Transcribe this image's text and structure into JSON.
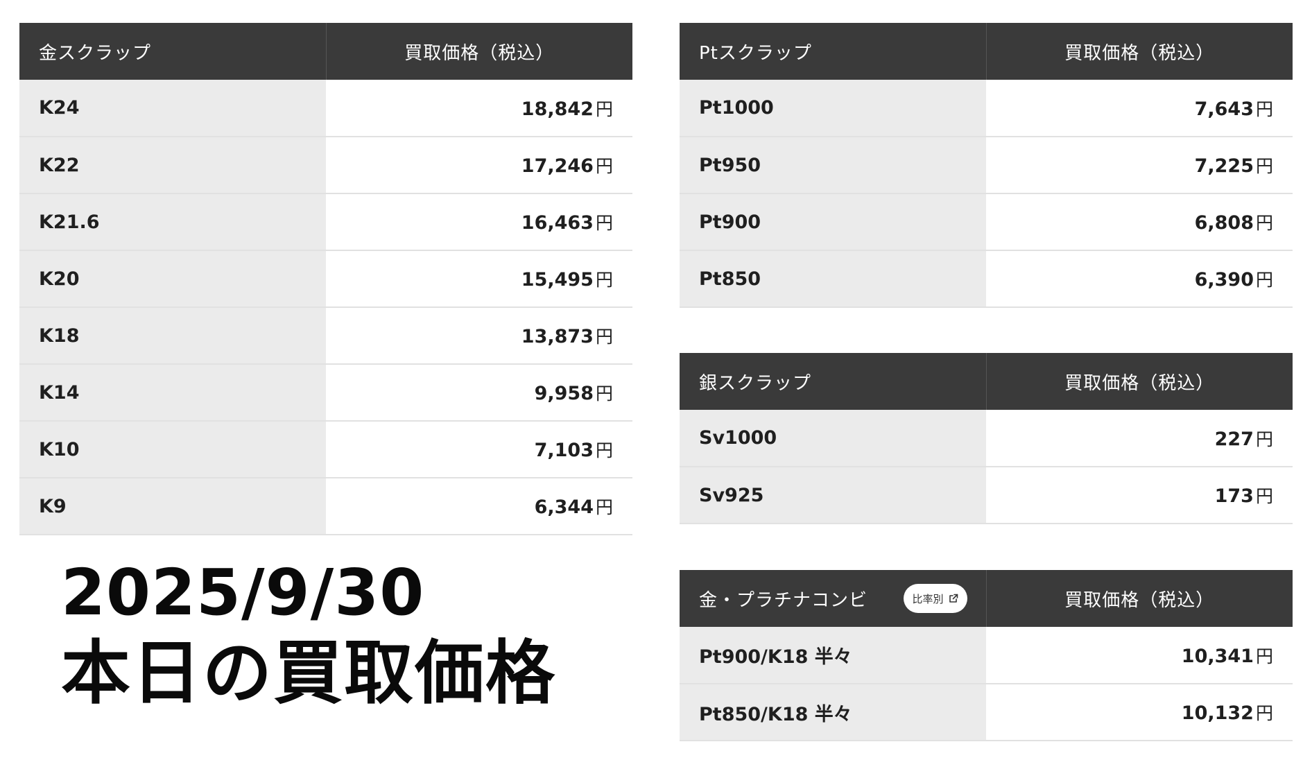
{
  "gold": {
    "header": {
      "name": "金スクラップ",
      "price": "買取価格（税込）"
    },
    "rows": [
      {
        "name": "K24",
        "price": "18,842",
        "unit": "円"
      },
      {
        "name": "K22",
        "price": "17,246",
        "unit": "円"
      },
      {
        "name": "K21.6",
        "price": "16,463",
        "unit": "円"
      },
      {
        "name": "K20",
        "price": "15,495",
        "unit": "円"
      },
      {
        "name": "K18",
        "price": "13,873",
        "unit": "円"
      },
      {
        "name": "K14",
        "price": "9,958",
        "unit": "円"
      },
      {
        "name": "K10",
        "price": "7,103",
        "unit": "円"
      },
      {
        "name": "K9",
        "price": "6,344",
        "unit": "円"
      }
    ]
  },
  "platinum": {
    "header": {
      "name": "Ptスクラップ",
      "price": "買取価格（税込）"
    },
    "rows": [
      {
        "name": "Pt1000",
        "price": "7,643",
        "unit": "円"
      },
      {
        "name": "Pt950",
        "price": "7,225",
        "unit": "円"
      },
      {
        "name": "Pt900",
        "price": "6,808",
        "unit": "円"
      },
      {
        "name": "Pt850",
        "price": "6,390",
        "unit": "円"
      }
    ]
  },
  "silver": {
    "header": {
      "name": "銀スクラップ",
      "price": "買取価格（税込）"
    },
    "rows": [
      {
        "name": "Sv1000",
        "price": "227",
        "unit": "円"
      },
      {
        "name": "Sv925",
        "price": "173",
        "unit": "円"
      }
    ]
  },
  "combi": {
    "header": {
      "name": "金・プラチナコンビ",
      "badge": "比率別",
      "badge_icon": "external-link-icon",
      "price": "買取価格（税込）"
    },
    "rows": [
      {
        "name": "Pt900/K18 半々",
        "price": "10,341",
        "unit": "円"
      },
      {
        "name": "Pt850/K18 半々",
        "price": "10,132",
        "unit": "円"
      }
    ]
  },
  "headline": {
    "date": "2025/9/30",
    "title": "本日の買取価格"
  }
}
